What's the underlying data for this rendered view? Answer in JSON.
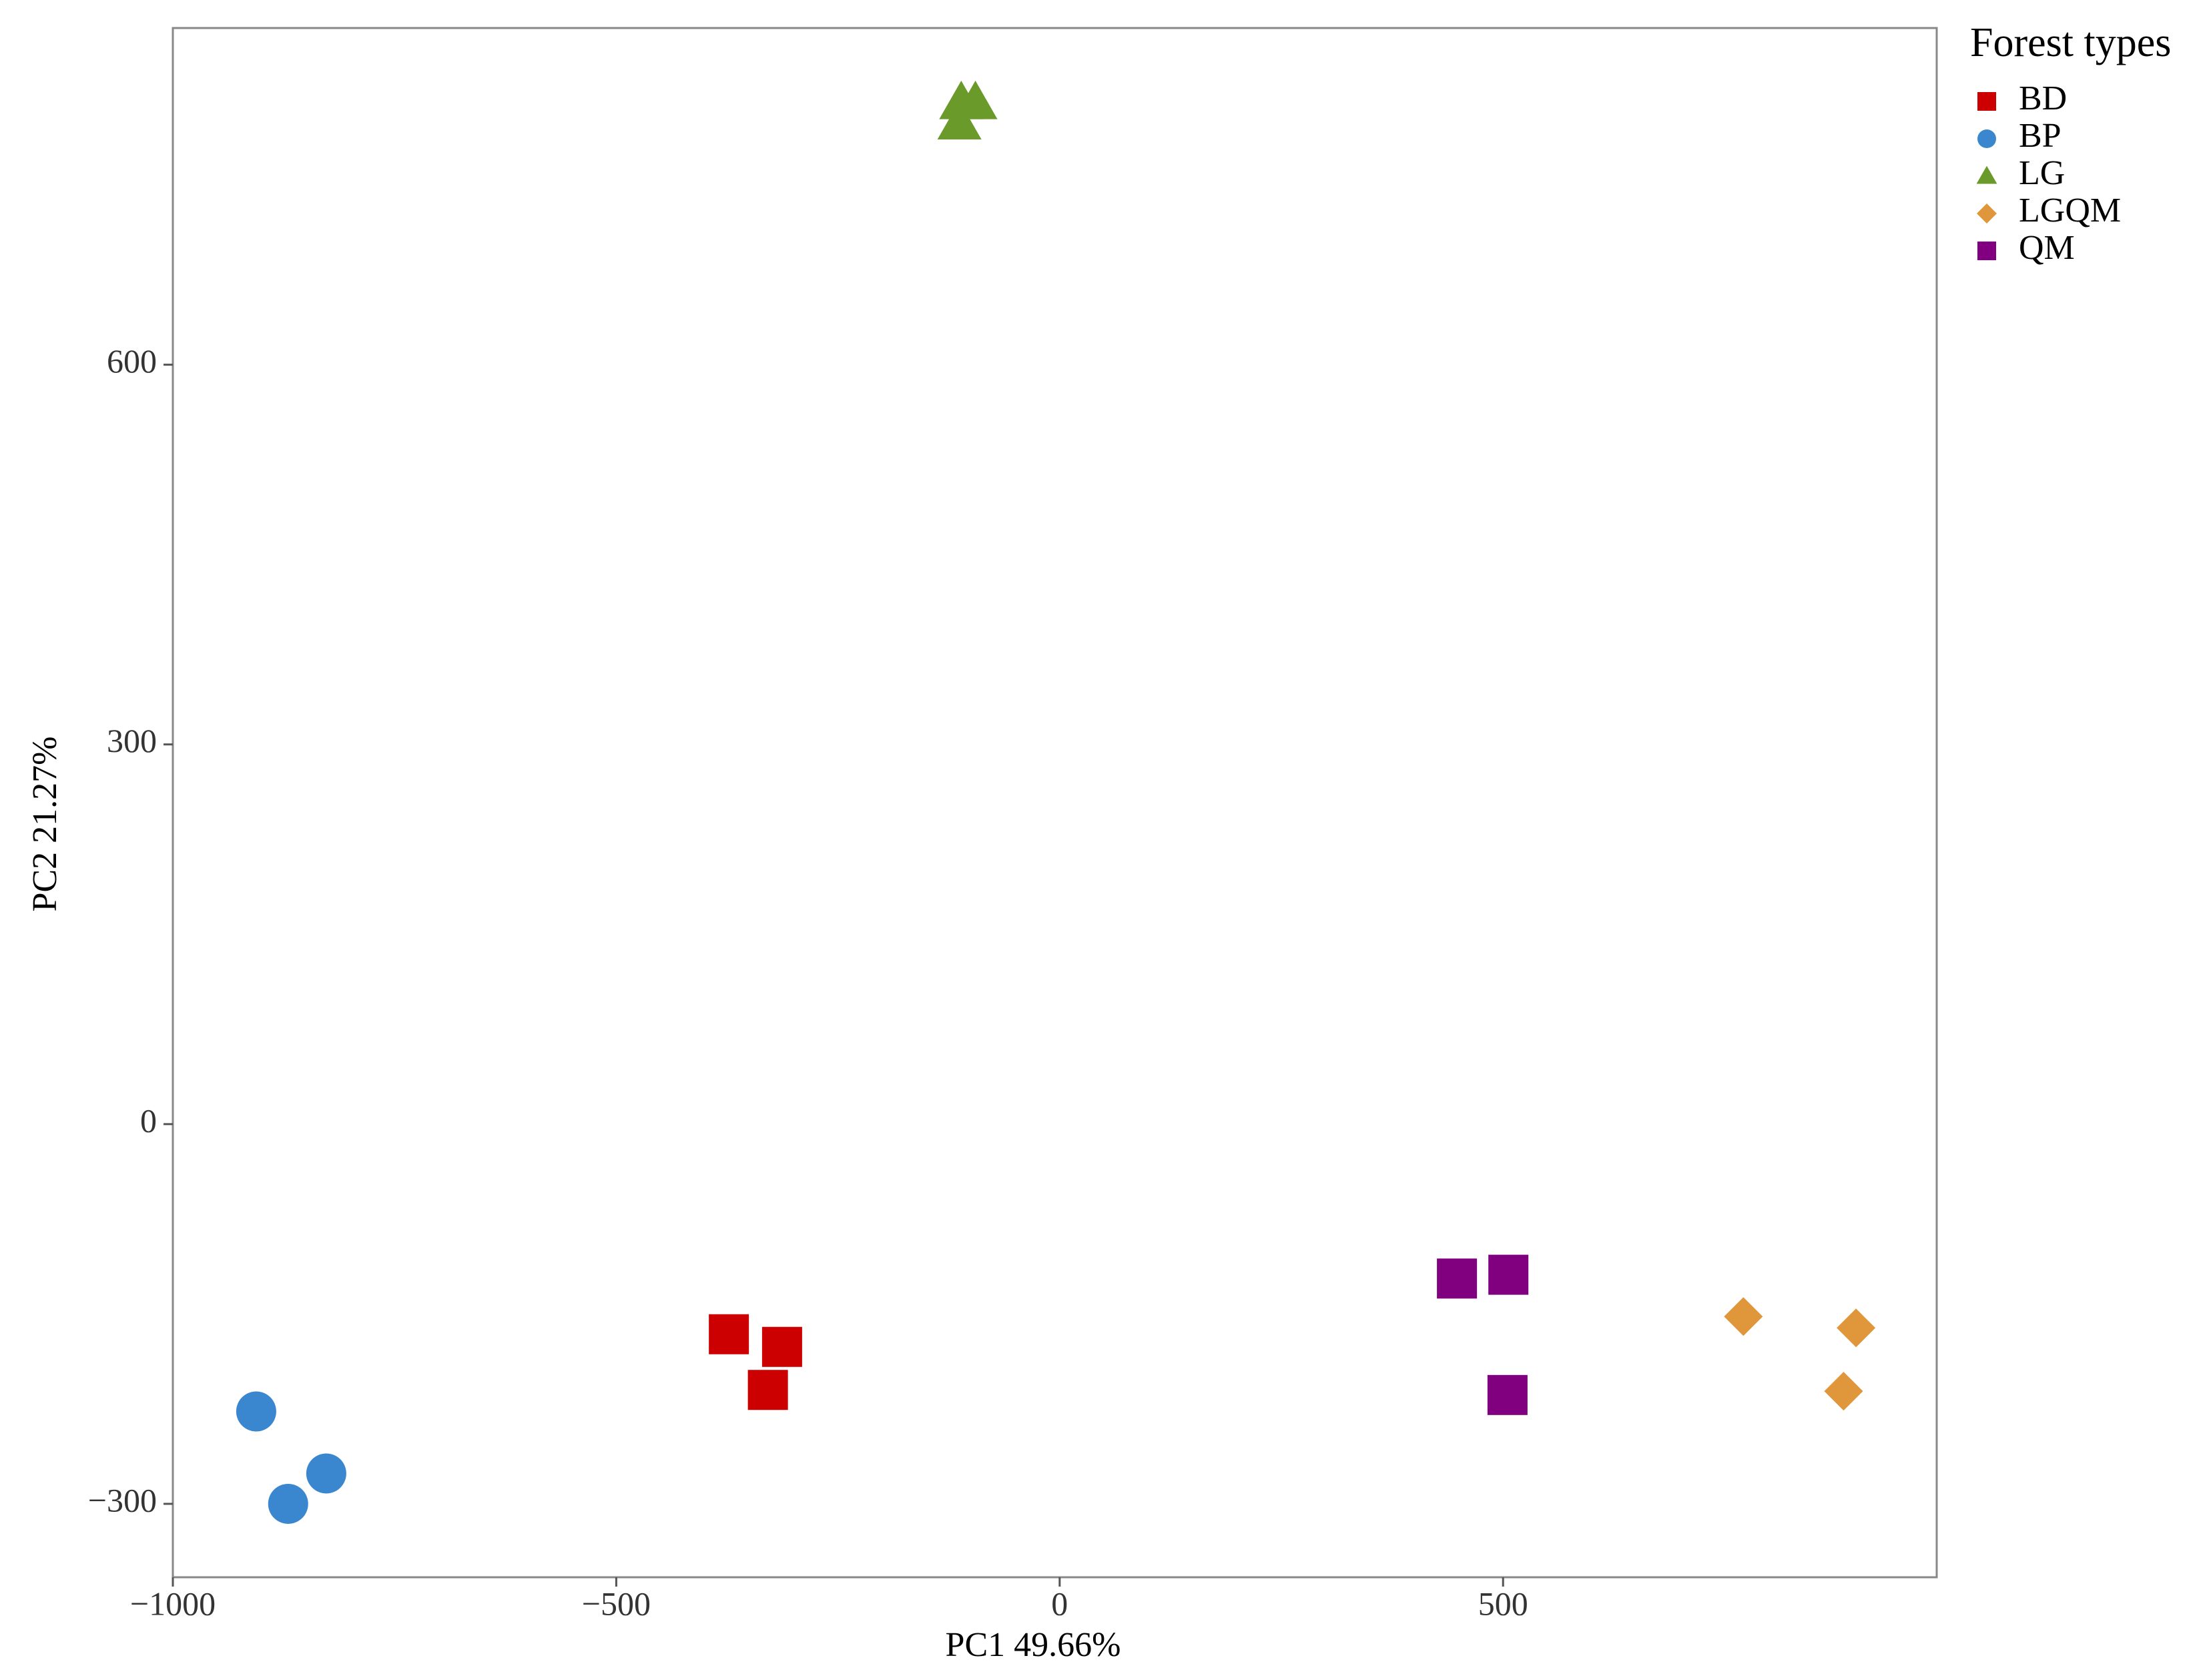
{
  "chart_data": {
    "type": "scatter",
    "x_label": "PC1 49.66%",
    "y_label": "PC2 21.27%",
    "legend_title": "Forest types",
    "legend": "right",
    "xlim": [
      -1000,
      989
    ],
    "ylim": [
      -358,
      866
    ],
    "xticks": [
      {
        "value": -1000,
        "label": "−1000"
      },
      {
        "value": -500,
        "label": "−500"
      },
      0,
      500
    ],
    "yticks": [
      {
        "value": -300,
        "label": "−300"
      },
      0,
      300,
      600
    ],
    "grid": false,
    "series": [
      {
        "name": "BD",
        "color": "#cc0000",
        "marker": "square",
        "x": [
          -373,
          -313,
          -329
        ],
        "values": [
          -166,
          -176,
          -210
        ]
      },
      {
        "name": "BP",
        "color": "#3a87d0",
        "marker": "circle",
        "x": [
          -906,
          -870,
          -827
        ],
        "values": [
          -227,
          -300,
          -276
        ]
      },
      {
        "name": "LG",
        "color": "#6a9a2a",
        "marker": "triangle",
        "x": [
          -111,
          -95,
          -113
        ],
        "values": [
          807,
          807,
          791
        ]
      },
      {
        "name": "LGQM",
        "color": "#e0963a",
        "marker": "diamond",
        "x": [
          771,
          898,
          884
        ],
        "values": [
          -152,
          -161,
          -211
        ]
      },
      {
        "name": "QM",
        "color": "#800080",
        "marker": "square",
        "x": [
          448,
          506,
          505
        ],
        "values": [
          -122,
          -119,
          -214
        ]
      }
    ]
  }
}
